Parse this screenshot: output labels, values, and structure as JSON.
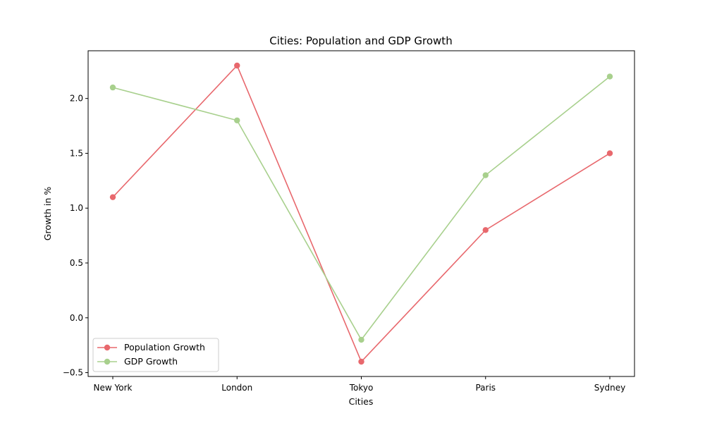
{
  "chart_data": {
    "type": "line",
    "title": "Cities: Population and GDP Growth",
    "xlabel": "Cities",
    "ylabel": "Growth in %",
    "categories": [
      "New York",
      "London",
      "Tokyo",
      "Paris",
      "Sydney"
    ],
    "series": [
      {
        "name": "Population Growth",
        "color": "#e8686d",
        "values": [
          1.1,
          2.3,
          -0.4,
          0.8,
          1.5
        ]
      },
      {
        "name": "GDP Growth",
        "color": "#a8d08d",
        "values": [
          2.1,
          1.8,
          -0.2,
          1.3,
          2.2
        ]
      }
    ],
    "yticks": [
      -0.5,
      0.0,
      0.5,
      1.0,
      1.5,
      2.0
    ],
    "ytick_labels": [
      "−0.5",
      "0.0",
      "0.5",
      "1.0",
      "1.5",
      "2.0"
    ],
    "ylim": [
      -0.535,
      2.435
    ],
    "grid": false,
    "legend": "lower-left"
  }
}
